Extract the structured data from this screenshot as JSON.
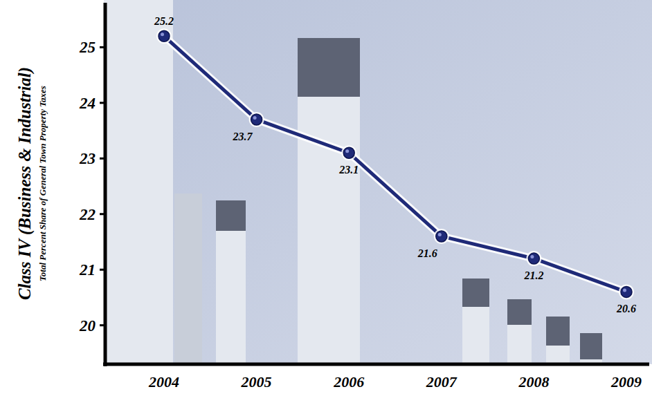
{
  "chart_data": {
    "type": "line",
    "y_label": "Class IV (Business & Industrial)",
    "y_label_sub": "Total Percent Share of General Town Property Taxes",
    "categories": [
      "2004",
      "2005",
      "2006",
      "2007",
      "2008",
      "2009"
    ],
    "values": [
      25.2,
      23.7,
      23.1,
      21.6,
      21.2,
      20.6
    ],
    "color": "#1f2a78",
    "marker": "circle",
    "ylim": [
      19.3,
      25.8
    ],
    "yticks": [
      20,
      21,
      22,
      23,
      24,
      25
    ],
    "grid": false,
    "data_labels": true
  }
}
